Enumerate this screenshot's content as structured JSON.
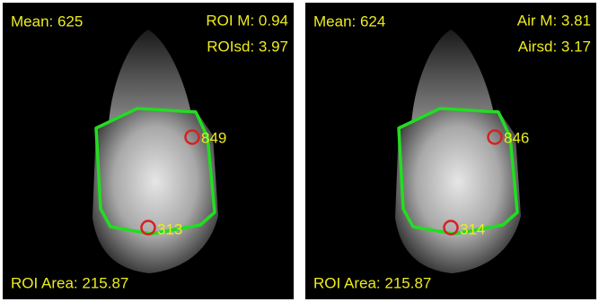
{
  "panels": [
    {
      "mean": "Mean: 625",
      "stat_1": "ROI M: 0.94",
      "stat_2": "ROIsd: 3.97",
      "marker_top": "849",
      "marker_bottom": "313",
      "area": "ROI Area: 215.87"
    },
    {
      "mean": "Mean: 624",
      "stat_1": "Air M: 3.81",
      "stat_2": "Airsd: 3.17",
      "marker_top": "846",
      "marker_bottom": "314",
      "area": "ROI Area: 215.87"
    }
  ]
}
